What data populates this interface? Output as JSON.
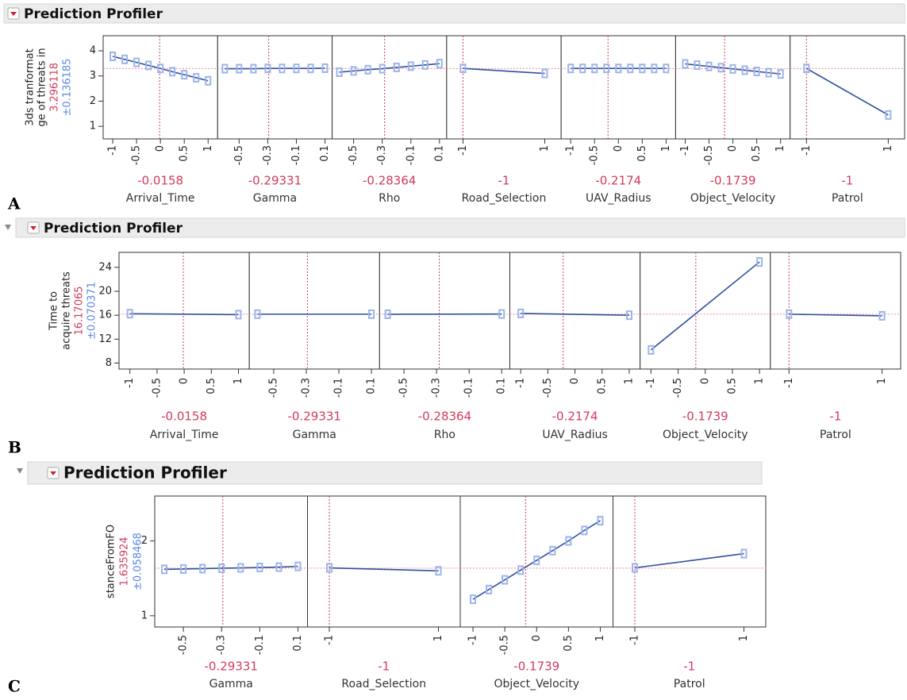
{
  "profilers": [
    {
      "label": "A",
      "title": "Prediction Profiler",
      "y_label": [
        "3ds tranformat",
        "ge of threats in"
      ],
      "response": 3.296118,
      "ci": "±0.136185",
      "ylim": [
        0.5,
        4.6
      ],
      "yticks": [
        1,
        2,
        3,
        4
      ],
      "panels": [
        {
          "factor": "Arrival_Time",
          "current": -0.0158,
          "xlim": [
            -1.2,
            1.2
          ],
          "xticks": [
            -1,
            -0.5,
            0,
            0.5,
            1
          ],
          "x": [
            -1,
            -0.75,
            -0.5,
            -0.25,
            0,
            0.25,
            0.5,
            0.75,
            1
          ],
          "y": [
            3.78,
            3.66,
            3.54,
            3.42,
            3.3,
            3.17,
            3.05,
            2.93,
            2.81
          ]
        },
        {
          "factor": "Gamma",
          "current": -0.29331,
          "xlim": [
            -0.65,
            0.15
          ],
          "xticks": [
            -0.5,
            -0.3,
            -0.1,
            0.1
          ],
          "x": [
            -0.6,
            -0.5,
            -0.4,
            -0.3,
            -0.2,
            -0.1,
            0,
            0.1
          ],
          "y": [
            3.29,
            3.29,
            3.29,
            3.3,
            3.3,
            3.3,
            3.3,
            3.31
          ]
        },
        {
          "factor": "Rho",
          "current": -0.28364,
          "xlim": [
            -0.65,
            0.15
          ],
          "xticks": [
            -0.5,
            -0.3,
            -0.1,
            0.1
          ],
          "x": [
            -0.6,
            -0.5,
            -0.4,
            -0.3,
            -0.2,
            -0.1,
            0,
            0.1
          ],
          "y": [
            3.15,
            3.2,
            3.25,
            3.29,
            3.34,
            3.39,
            3.44,
            3.49
          ]
        },
        {
          "factor": "Road_Selection",
          "current": -1,
          "xlim": [
            -1.4,
            1.4
          ],
          "xticks": [
            -1,
            1
          ],
          "x": [
            -1,
            1
          ],
          "y": [
            3.3,
            3.1
          ]
        },
        {
          "factor": "UAV_Radius",
          "current": -0.2174,
          "xlim": [
            -1.2,
            1.2
          ],
          "xticks": [
            -1,
            -0.5,
            0,
            0.5,
            1
          ],
          "x": [
            -1,
            -0.75,
            -0.5,
            -0.25,
            0,
            0.25,
            0.5,
            0.75,
            1
          ],
          "y": [
            3.3,
            3.3,
            3.3,
            3.3,
            3.3,
            3.3,
            3.3,
            3.3,
            3.3
          ]
        },
        {
          "factor": "Object_Velocity",
          "current": -0.1739,
          "xlim": [
            -1.2,
            1.2
          ],
          "xticks": [
            -1,
            -0.5,
            0,
            0.5,
            1
          ],
          "x": [
            -1,
            -0.75,
            -0.5,
            -0.25,
            0,
            0.25,
            0.5,
            0.75,
            1
          ],
          "y": [
            3.48,
            3.43,
            3.38,
            3.33,
            3.28,
            3.23,
            3.18,
            3.13,
            3.08
          ]
        },
        {
          "factor": "Patrol",
          "current": -1,
          "xlim": [
            -1.4,
            1.4
          ],
          "xticks": [
            -1,
            1
          ],
          "x": [
            -1,
            1
          ],
          "y": [
            3.3,
            1.45
          ]
        }
      ]
    },
    {
      "label": "B",
      "title": "Prediction Profiler",
      "y_label": [
        "Time to",
        "acquire threats"
      ],
      "response": 16.17065,
      "ci": "±0.070371",
      "ylim": [
        7,
        26.5
      ],
      "yticks": [
        8,
        12,
        16,
        20,
        24
      ],
      "panels": [
        {
          "factor": "Arrival_Time",
          "current": -0.0158,
          "xlim": [
            -1.2,
            1.2
          ],
          "xticks": [
            -1,
            -0.5,
            0,
            0.5,
            1
          ],
          "x": [
            -1,
            1
          ],
          "y": [
            16.25,
            16.1
          ]
        },
        {
          "factor": "Gamma",
          "current": -0.29331,
          "xlim": [
            -0.65,
            0.15
          ],
          "xticks": [
            -0.5,
            -0.3,
            -0.1,
            0.1
          ],
          "x": [
            -0.6,
            0.1
          ],
          "y": [
            16.17,
            16.17
          ]
        },
        {
          "factor": "Rho",
          "current": -0.28364,
          "xlim": [
            -0.65,
            0.15
          ],
          "xticks": [
            -0.5,
            -0.3,
            -0.1,
            0.1
          ],
          "x": [
            -0.6,
            0.1
          ],
          "y": [
            16.15,
            16.2
          ]
        },
        {
          "factor": "UAV_Radius",
          "current": -0.2174,
          "xlim": [
            -1.2,
            1.2
          ],
          "xticks": [
            -1,
            -0.5,
            0,
            0.5,
            1
          ],
          "x": [
            -1,
            1
          ],
          "y": [
            16.3,
            16.0
          ]
        },
        {
          "factor": "Object_Velocity",
          "current": -0.1739,
          "xlim": [
            -1.2,
            1.2
          ],
          "xticks": [
            -1,
            -0.5,
            0,
            0.5,
            1
          ],
          "x": [
            -1,
            1
          ],
          "y": [
            10.2,
            24.9
          ]
        },
        {
          "factor": "Patrol",
          "current": -1,
          "xlim": [
            -1.4,
            1.4
          ],
          "xticks": [
            -1,
            1
          ],
          "x": [
            -1,
            1
          ],
          "y": [
            16.17,
            15.9
          ]
        }
      ]
    },
    {
      "label": "C",
      "title": "Prediction Profiler",
      "y_label": [
        "stanceFromFO"
      ],
      "response": 1.635924,
      "ci": "±0.058468",
      "ylim": [
        0.85,
        2.6
      ],
      "yticks": [
        1,
        2
      ],
      "panels": [
        {
          "factor": "Gamma",
          "current": -0.29331,
          "xlim": [
            -0.65,
            0.15
          ],
          "xticks": [
            -0.5,
            -0.3,
            -0.1,
            0.1
          ],
          "x": [
            -0.6,
            -0.5,
            -0.4,
            -0.3,
            -0.2,
            -0.1,
            0,
            0.1
          ],
          "y": [
            1.62,
            1.625,
            1.63,
            1.635,
            1.64,
            1.645,
            1.65,
            1.66
          ]
        },
        {
          "factor": "Road_Selection",
          "current": -1,
          "xlim": [
            -1.4,
            1.4
          ],
          "xticks": [
            -1,
            1
          ],
          "x": [
            -1,
            1
          ],
          "y": [
            1.64,
            1.6
          ]
        },
        {
          "factor": "Object_Velocity",
          "current": -0.1739,
          "xlim": [
            -1.2,
            1.2
          ],
          "xticks": [
            -1,
            -0.5,
            0,
            0.5,
            1
          ],
          "x": [
            -1,
            -0.75,
            -0.5,
            -0.25,
            0,
            0.25,
            0.5,
            0.75,
            1
          ],
          "y": [
            1.22,
            1.35,
            1.48,
            1.61,
            1.74,
            1.87,
            2.0,
            2.14,
            2.27
          ]
        },
        {
          "factor": "Patrol",
          "current": -1,
          "xlim": [
            -1.4,
            1.4
          ],
          "xticks": [
            -1,
            1
          ],
          "x": [
            -1,
            1
          ],
          "y": [
            1.64,
            1.83
          ]
        }
      ]
    }
  ]
}
